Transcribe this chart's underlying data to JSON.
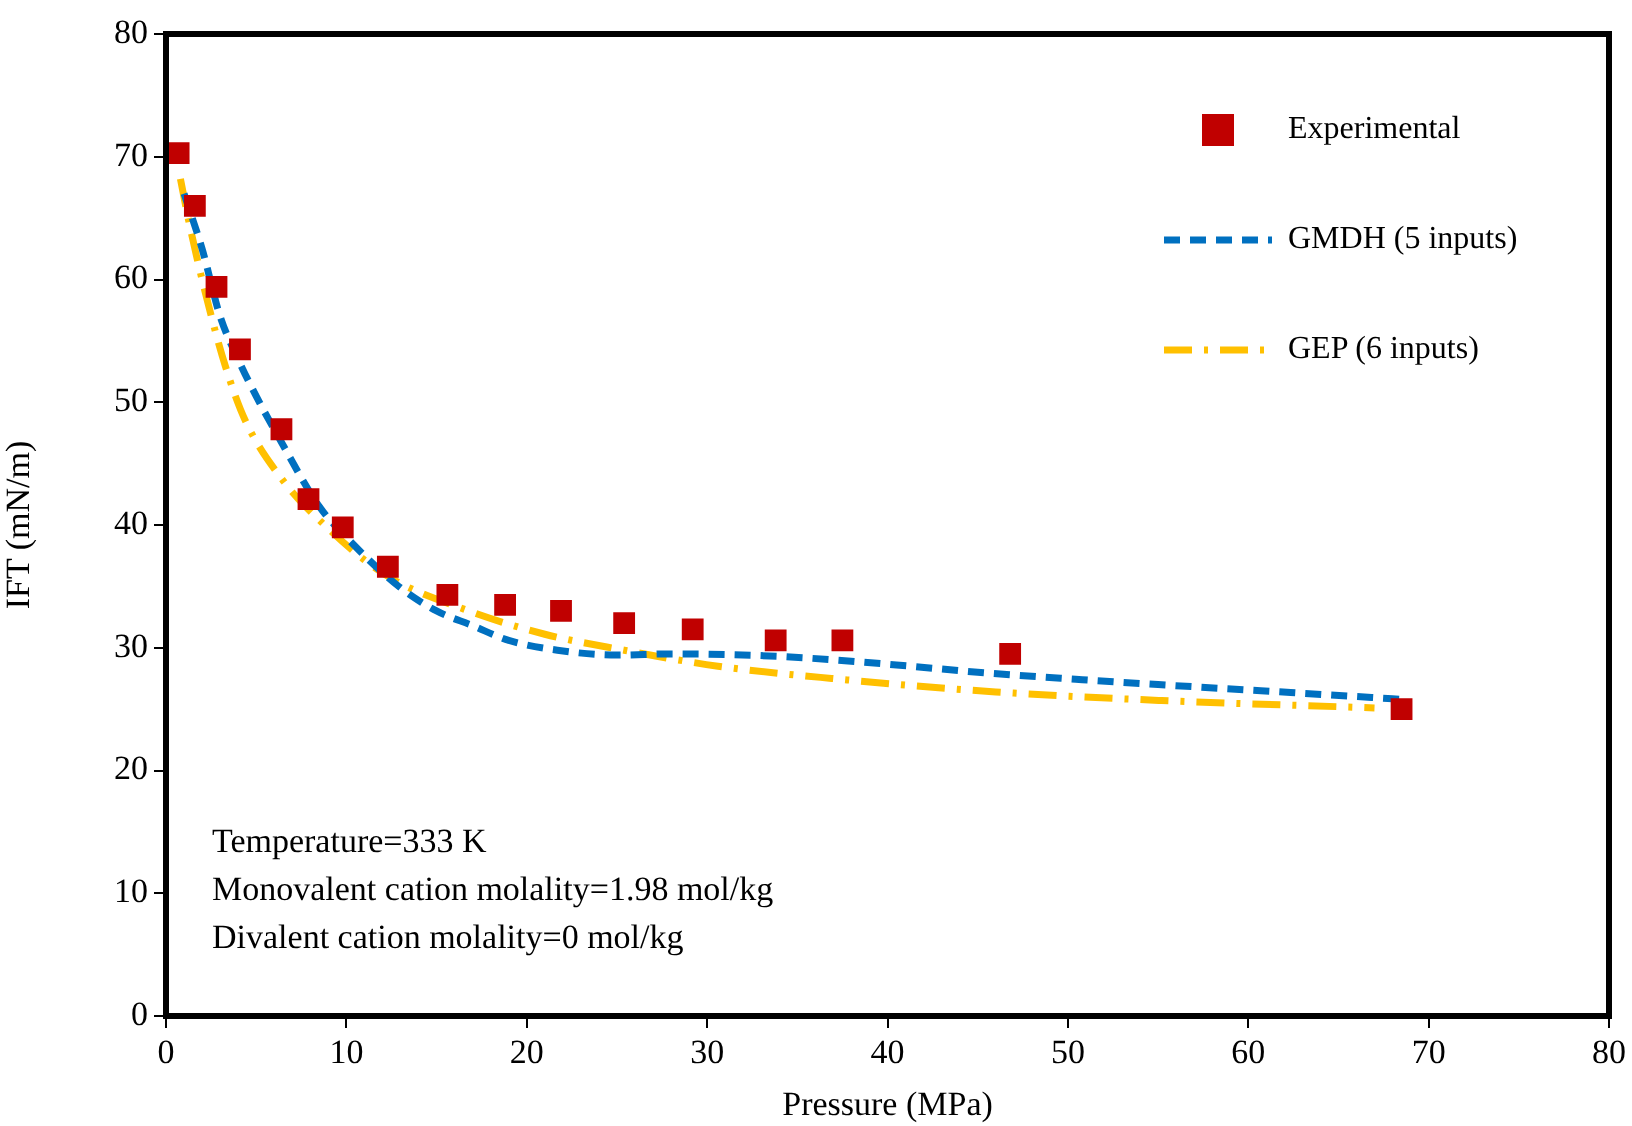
{
  "chart_data": {
    "type": "scatter",
    "xlabel": "Pressure (MPa)",
    "ylabel": "IFT (mN/m)",
    "xlim": [
      0,
      80
    ],
    "xticks": [
      0,
      10,
      20,
      30,
      40,
      50,
      60,
      70,
      80
    ],
    "ylim": [
      0,
      80
    ],
    "yticks": [
      0,
      10,
      20,
      30,
      40,
      50,
      60,
      70,
      80
    ],
    "grid": false,
    "legend": "top right",
    "annotations": [
      "Temperature=333 K",
      "Monovalent cation molality=1.98 mol/kg",
      "Divalent cation molality=0 mol/kg"
    ],
    "series": [
      {
        "name": "Experimental",
        "type": "scatter",
        "marker": "square",
        "color": "#c00000",
        "x": [
          0.7,
          1.6,
          2.8,
          4.1,
          6.4,
          7.9,
          9.8,
          12.3,
          15.6,
          18.8,
          21.9,
          25.4,
          29.2,
          33.8,
          37.5,
          46.8,
          68.5
        ],
        "values": [
          70.3,
          66,
          59.4,
          54.3,
          47.8,
          42.1,
          39.8,
          36.6,
          34.3,
          33.5,
          33,
          32,
          31.5,
          30.6,
          30.6,
          29.5,
          25
        ]
      },
      {
        "name": "GMDH (5 inputs)",
        "type": "line",
        "marker": "none",
        "line_style": "dashed",
        "color": "#0070c0",
        "x": [
          1,
          2,
          3,
          4,
          5,
          6.3,
          8.5,
          10,
          12.9,
          15,
          17,
          19,
          21.7,
          25,
          28,
          33.9,
          40.5,
          45,
          50.8,
          55,
          60.7,
          68.5
        ],
        "values": [
          67,
          62.5,
          57,
          53.5,
          50.5,
          47,
          41.5,
          39,
          35,
          33,
          31.8,
          30.6,
          29.8,
          29.4,
          29.5,
          29.3,
          28.6,
          28,
          27.4,
          27,
          26.5,
          25.8
        ]
      },
      {
        "name": "GEP (6 inputs)",
        "type": "line",
        "marker": "none",
        "line_style": "dashdot",
        "color": "#ffc000",
        "x": [
          0.8,
          1.3,
          2.2,
          3.3,
          4.4,
          6.5,
          8.5,
          12.1,
          16.6,
          21,
          25.4,
          30.6,
          36.9,
          46,
          55.2,
          67
        ],
        "values": [
          68.2,
          64.5,
          58.8,
          52.9,
          48.5,
          43.6,
          40.4,
          36,
          33.1,
          31.1,
          29.8,
          28.5,
          27.5,
          26.4,
          25.7,
          25.1
        ]
      }
    ]
  }
}
